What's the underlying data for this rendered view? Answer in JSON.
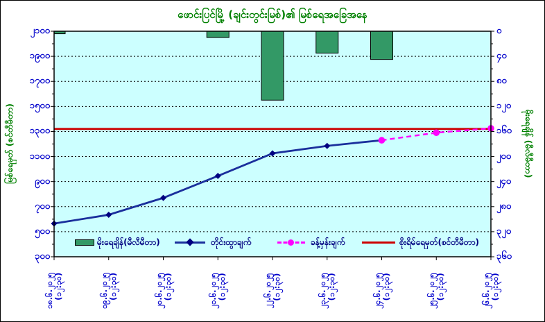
{
  "chart_data": {
    "type": [
      "bar",
      "line"
    ],
    "title": "ဖောင်းပြင်မြို့ (ချင်းတွင်းမြစ်)၏ မြစ်ရေအခြေအနေ",
    "title_meaning": "Phaungpyin Town (Chindwin River) water level situation",
    "plot_bg": "#CCFFFF",
    "grid": "dotted-horizontal",
    "legend_position": "bottom-inside",
    "left_axis": {
      "title": "မြစ်ရေမှတ် (စင်တီမီတာ)",
      "unit": "cm",
      "min": 300,
      "max": 2100,
      "step": 200,
      "tick_labels": [
        "၂၁၀၀",
        "၁၉၀၀",
        "၁၇၀၀",
        "၁၅၀၀",
        "၁၃၀၀",
        "၁၁၀၀",
        "၉၀၀",
        "၇၀၀",
        "၅၀၀",
        "၃၀၀"
      ]
    },
    "right_axis": {
      "title": "မိုးရေချိန် (မီလီမီတာ)",
      "unit": "mm",
      "min": 0,
      "max": 360,
      "step": 40,
      "tick_labels": [
        "၀",
        "၄၀",
        "၈၀",
        "၁၂၀",
        "၁၆၀",
        "၂၀၀",
        "၂၄၀",
        "၂၈၀",
        "၃၂၀",
        "၃၆၀"
      ]
    },
    "x_axis": {
      "labels": [
        {
          "date": "၁၈.၆.၂၀၂၅",
          "time": "(၁၂:၃၀)"
        },
        {
          "date": "၁၉.၆.၂၀၂၅",
          "time": "(၁၂:၃၀)"
        },
        {
          "date": "၂၀.၆.၂၀၂၅",
          "time": "(၁၂:၃၀)"
        },
        {
          "date": "၂၁.၆.၂၀၂၅",
          "time": "(၁၂:၃၀)"
        },
        {
          "date": "၂၂.၆.၂၀၂၅",
          "time": "(၁၂:၃၀)"
        },
        {
          "date": "၂၃.၆.၂၀၂၅",
          "time": "(၁၂:၃၀)"
        },
        {
          "date": "၂၄.၆.၂၀၂၅",
          "time": "(၁၂:၃၀)"
        },
        {
          "date": "၂၅.၆.၂၀၂၅",
          "time": "(၁၂:၃၀)"
        },
        {
          "date": "၂၆.၆.၂၀၂၅",
          "time": "(၁၂:၃၀)"
        }
      ],
      "dates_ascii": [
        "18.6.2025",
        "19.6.2025",
        "20.6.2025",
        "21.6.2025",
        "22.6.2025",
        "23.6.2025",
        "24.6.2025",
        "25.6.2025",
        "26.6.2025"
      ],
      "time_ascii": "(12:30)"
    },
    "series": [
      {
        "name": "မိုးရေချိန်(မီလီမီတာ)",
        "meaning": "Rainfall (mm)",
        "type": "bar",
        "axis": "right",
        "color": "#339966",
        "values": [
          4,
          0,
          0,
          10,
          110,
          35,
          45,
          0,
          0
        ]
      },
      {
        "name": "တိုင်းထွာချက်",
        "meaning": "Observed level (cm)",
        "type": "line",
        "axis": "left",
        "color": "#1A2F9C",
        "marker": "diamond",
        "marker_color": "#000080",
        "values": [
          565,
          635,
          770,
          945,
          1125,
          1185,
          1230,
          null,
          null
        ]
      },
      {
        "name": "ခန့်မှန်းချက်",
        "meaning": "Forecast level (cm)",
        "type": "line",
        "style": "dashed",
        "axis": "left",
        "color": "#FF00FF",
        "marker": "circle",
        "marker_color": "#FF00FF",
        "values": [
          null,
          null,
          null,
          null,
          null,
          null,
          1230,
          1290,
          1325
        ]
      },
      {
        "name": "စိုးရိမ်ရေမှတ်(စင်တီမီတာ)",
        "meaning": "Danger level (cm)",
        "type": "hline",
        "axis": "left",
        "color": "#CC0000",
        "value": 1320
      }
    ]
  }
}
